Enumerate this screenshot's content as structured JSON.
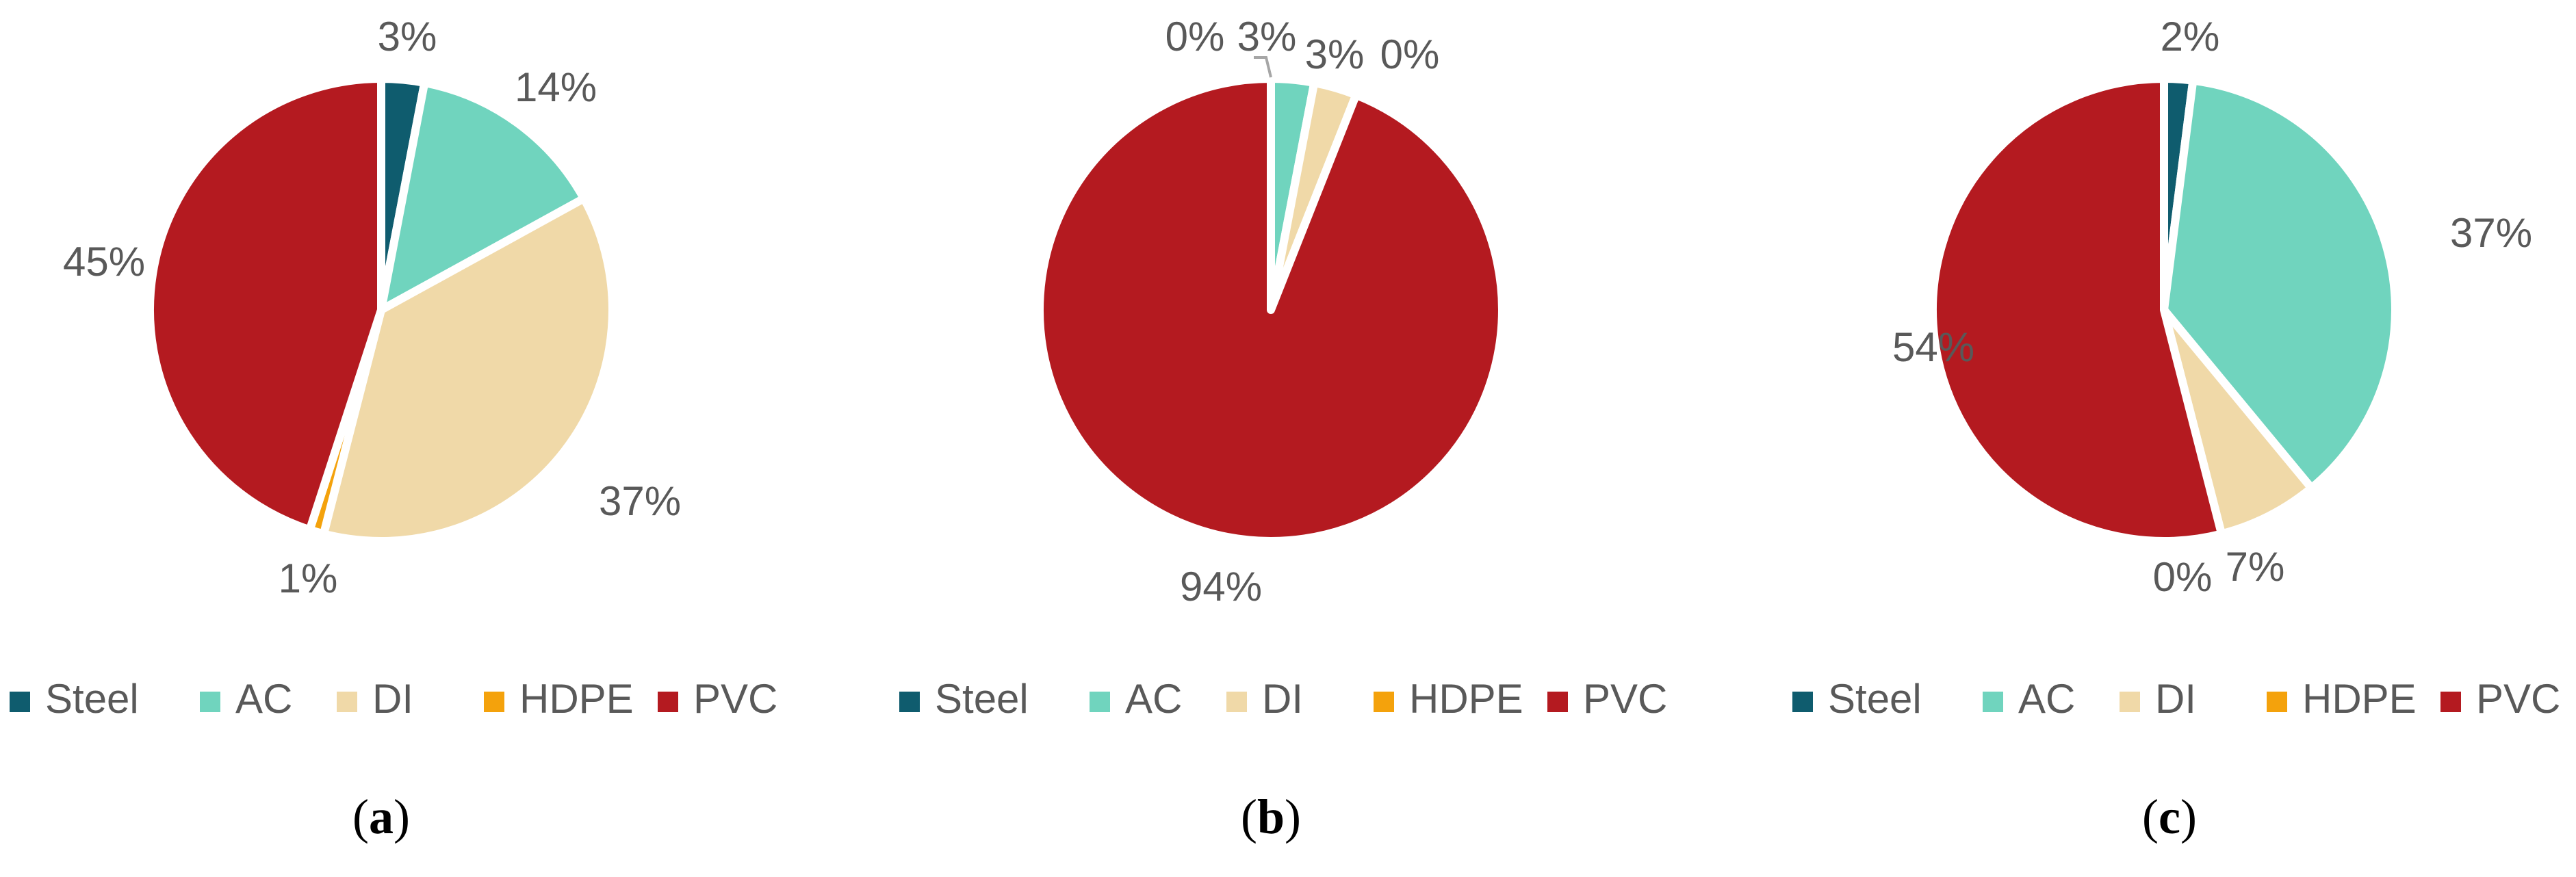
{
  "legend_items": [
    {
      "name": "Steel",
      "color": "#0f5c6e"
    },
    {
      "name": "AC",
      "color": "#70d4be"
    },
    {
      "name": "DI",
      "color": "#f0d9a8"
    },
    {
      "name": "HDPE",
      "color": "#f4a20c"
    },
    {
      "name": "PVC",
      "color": "#b41a20"
    }
  ],
  "chart_data": [
    {
      "type": "pie",
      "caption_letter": "a",
      "categories": [
        "Steel",
        "AC",
        "DI",
        "HDPE",
        "PVC"
      ],
      "values": [
        3,
        14,
        37,
        1,
        45
      ],
      "labels": [
        "3%",
        "14%",
        "37%",
        "1%",
        "45%"
      ],
      "legend_position": "bottom"
    },
    {
      "type": "pie",
      "caption_letter": "b",
      "categories": [
        "Steel",
        "AC",
        "DI",
        "HDPE",
        "PVC"
      ],
      "values": [
        0,
        3,
        3,
        0,
        94
      ],
      "labels": [
        "0%",
        "3%",
        "3%",
        "0%",
        "94%"
      ],
      "legend_position": "bottom"
    },
    {
      "type": "pie",
      "caption_letter": "c",
      "categories": [
        "Steel",
        "AC",
        "DI",
        "HDPE",
        "PVC"
      ],
      "values": [
        2,
        37,
        7,
        0,
        54
      ],
      "labels": [
        "2%",
        "37%",
        "7%",
        "0%",
        "54%"
      ],
      "legend_position": "bottom"
    }
  ]
}
